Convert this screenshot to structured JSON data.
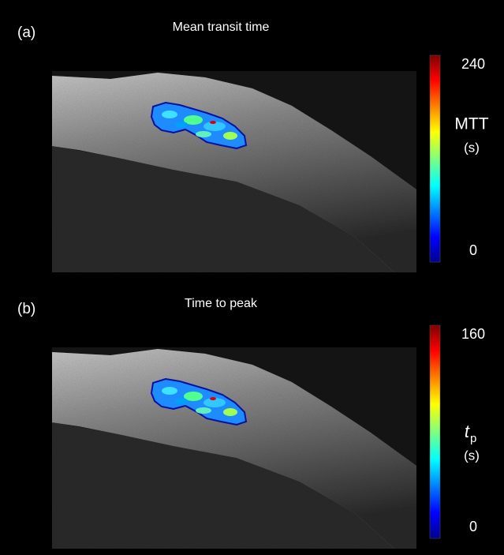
{
  "panels": [
    {
      "label": "(a)",
      "title": "Mean transit time",
      "colorbar": {
        "max": 240,
        "min": 0,
        "quantity": "MTT",
        "unit": "(s)"
      }
    },
    {
      "label": "(b)",
      "title": "Time to peak",
      "colorbar": {
        "max": 160,
        "min": 0,
        "quantity_symbol": "t",
        "quantity_subscript": "p",
        "unit": "(s)"
      }
    }
  ]
}
